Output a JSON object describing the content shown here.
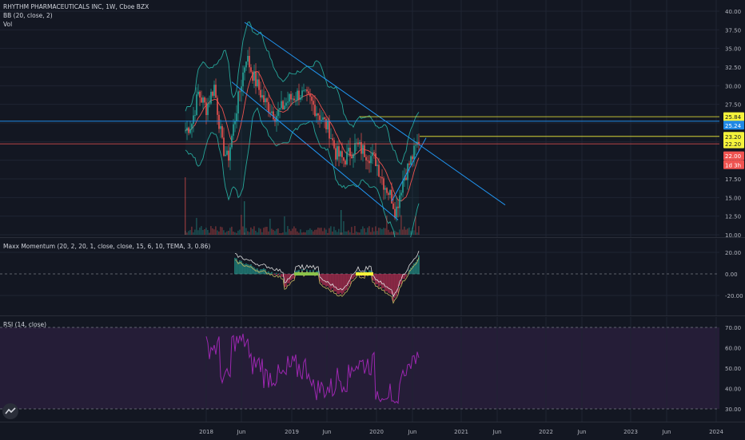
{
  "chart": {
    "title": "RHYTHM PHARMACEUTICALS INC, 1W, Cboe BZX",
    "bb_label": "BB (20, close, 2)",
    "vol_label": "Vol"
  },
  "price_scale": {
    "ticks": [
      "40.00",
      "37.50",
      "35.00",
      "32.50",
      "30.00",
      "27.50",
      "25.00",
      "22.50",
      "20.00",
      "17.50",
      "15.00",
      "12.50",
      "10.00"
    ],
    "badges": [
      {
        "text": "25.84",
        "bg": "#f5f33b",
        "fg": "#131722"
      },
      {
        "text": "25.24",
        "bg": "#1e88e5",
        "fg": "#ffffff"
      },
      {
        "text": "23.20",
        "bg": "#f5f33b",
        "fg": "#131722"
      },
      {
        "text": "22.20",
        "bg": "#f5f33b",
        "fg": "#131722"
      },
      {
        "text": "22.00",
        "bg": "#ef5350",
        "fg": "#ffffff"
      },
      {
        "text": "1d 3h",
        "bg": "#ef5350",
        "fg": "#ffffff"
      }
    ]
  },
  "momentum": {
    "label": "Maxx Momentum (20, 2, 20, 1, close, close, 15, 6, 10, TEMA, 3, 0.86)",
    "ticks": [
      "20.00",
      "0.00",
      "-20.00"
    ]
  },
  "rsi": {
    "label": "RSI (14, close)",
    "ticks": [
      "70.00",
      "60.00",
      "50.00",
      "40.00",
      "30.00"
    ]
  },
  "time_axis": {
    "labels": [
      "2018",
      "Jun",
      "2019",
      "Jun",
      "2020",
      "Jun",
      "2021",
      "Jun",
      "2022",
      "Jun",
      "2023",
      "Jun",
      "2024"
    ]
  },
  "colors": {
    "background": "#131722",
    "up": "#26a69a",
    "down": "#ef5350",
    "bb_mid": "#ef5350",
    "bb_band": "#26a69a",
    "channel": "#2196f3",
    "rsi": "#9c27b0",
    "rsi_band": "#2a1f3d",
    "horizontal_yellow": "#f5f33b",
    "horizontal_blue": "#1e88e5"
  },
  "icons": {
    "logo": "tradingview-logo-icon"
  }
}
